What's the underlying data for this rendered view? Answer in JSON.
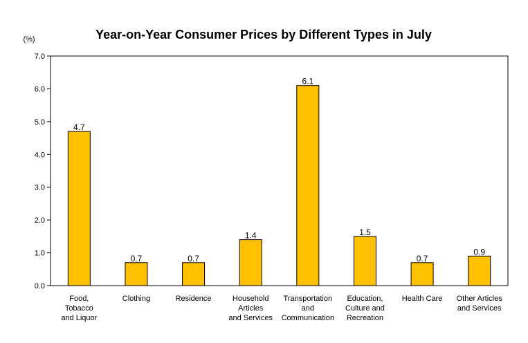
{
  "chart_data": {
    "type": "bar",
    "title": "Year-on-Year Consumer Prices by Different Types in July",
    "unit_label": "(%)",
    "xlabel": "",
    "ylabel": "",
    "ylim": [
      0,
      7
    ],
    "yticks": [
      "0.0",
      "1.0",
      "2.0",
      "3.0",
      "4.0",
      "5.0",
      "6.0",
      "7.0"
    ],
    "categories": [
      [
        "Food,",
        "Tobacco",
        "and Liquor"
      ],
      [
        "Clothing"
      ],
      [
        "Residence"
      ],
      [
        "Household",
        "Articles",
        "and Services"
      ],
      [
        "Transportation",
        "and",
        "Communication"
      ],
      [
        "Education,",
        "Culture and",
        "Recreation"
      ],
      [
        "Health Care"
      ],
      [
        "Other Articles",
        "and Services"
      ]
    ],
    "values": [
      4.7,
      0.7,
      0.7,
      1.4,
      6.1,
      1.5,
      0.7,
      0.9
    ],
    "value_labels": [
      "4.7",
      "0.7",
      "0.7",
      "1.4",
      "6.1",
      "1.5",
      "0.7",
      "0.9"
    ],
    "grid": false,
    "colors": {
      "bar_fill": "#FFC000",
      "bar_stroke": "#000000",
      "axis": "#000000"
    }
  }
}
